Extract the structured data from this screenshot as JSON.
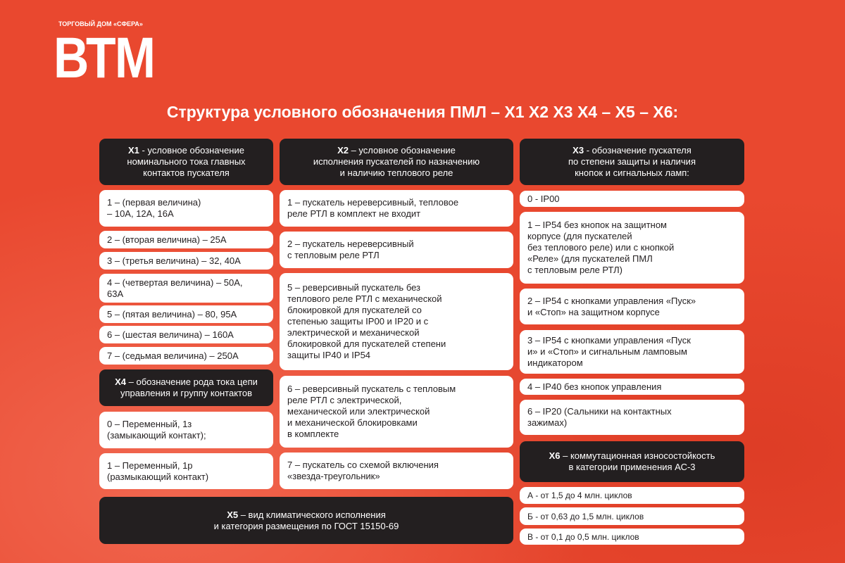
{
  "logo": {
    "subtitle": "ТОРГОВЫЙ ДОМ «СФЕРА»",
    "text": "ВТМ"
  },
  "title": "Структура условного обозначения ПМЛ – Х1 Х2 Х3 Х4 – Х5 – Х6:",
  "x1": {
    "key": "Х1",
    "header": " - условное обозначение\nноминального тока главных\nконтактов пускателя",
    "items": [
      "1 – (первая величина)\n– 10А, 12А, 16А",
      "2 – (вторая величина) – 25А",
      "3 – (третья величина) – 32, 40А",
      "4 – (четвертая величина) – 50А,\n63А",
      "5 – (пятая величина) – 80, 95А",
      "6 – (шестая величина) – 160А",
      "7 – (седьмая величина) – 250А"
    ]
  },
  "x4": {
    "key": "Х4",
    "header": " – обозначение рода тока цепи\nуправления и группу контактов",
    "items": [
      "0 – Переменный, 1з\n(замыкающий контакт);",
      "1 – Переменный, 1р\n(размыкающий контакт)"
    ]
  },
  "x5": {
    "key": "Х5",
    "header": " – вид климатического исполнения\nи категория размещения по ГОСТ 15150-69"
  },
  "x2": {
    "key": "Х2",
    "header": " – условное обозначение\nисполнения пускателей по назначению\nи наличию теплового реле",
    "items": [
      "1 – пускатель нереверсивный, тепловое\nреле РТЛ в комплект не входит",
      "2 – пускатель нереверсивный\nс тепловым реле РТЛ",
      "5 – реверсивный пускатель без\nтеплового реле РТЛ с механической\nблокировкой для пускателей со\nстепенью защиты IP00 и IP20 и с\nэлектрической и механической\nблокировкой для пускателей степени\nзащиты IP40 и IP54",
      "6 – реверсивный пускатель с тепловым\nреле РТЛ с электрической,\nмеханической или электрической\nи механической блокировками\nв комплекте",
      "7 – пускатель со схемой включения\n«звезда-треугольник»"
    ]
  },
  "x3": {
    "key": "Х3",
    "header": " - обозначение пускателя\nпо степени защиты и наличия\nкнопок и сигнальных ламп:",
    "items": [
      "0 - IP00",
      "1 – IP54 без кнопок на защитном\nкорпусе (для пускателей\nбез теплового реле) или с кнопкой\n«Реле» (для пускателей ПМЛ\nс тепловым реле РТЛ)",
      "2 – IP54 с кнопками управления «Пуск»\nи «Стоп» на защитном корпусе",
      "3 – IP54 с кнопками управления «Пуск\nи» и «Стоп» и сигнальным ламповым\nиндикатором",
      "4 – IP40 без кнопок управления",
      "6 – IP20 (Сальники на контактных\nзажимах)"
    ]
  },
  "x6": {
    "key": "Х6",
    "header": " – коммутационная износостойкость\nв категории применения АС-3",
    "items": [
      "А - от 1,5 до 4 млн. циклов",
      "Б - от 0,63 до 1,5 млн. циклов",
      "В - от 0,1 до 0,5 млн. циклов"
    ]
  },
  "colors": {
    "background": "#e9482f",
    "dark": "#231f20",
    "light": "#ffffff"
  }
}
